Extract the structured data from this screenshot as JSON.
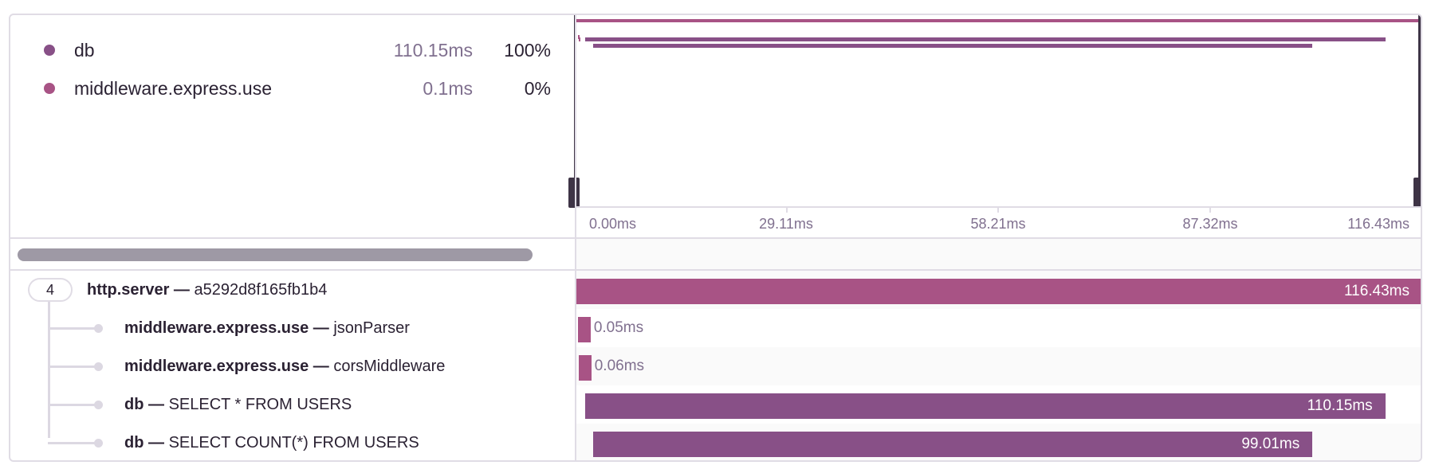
{
  "colors": {
    "http": "#a85385",
    "db": "#885087",
    "middleware": "#a85385",
    "handle": "#3e3446"
  },
  "legend": [
    {
      "name": "db",
      "duration": "110.15ms",
      "percent": "100%",
      "color": "#885087"
    },
    {
      "name": "middleware.express.use",
      "duration": "0.1ms",
      "percent": "0%",
      "color": "#a85385"
    }
  ],
  "axis": {
    "ticks": [
      "0.00ms",
      "29.11ms",
      "58.21ms",
      "87.32ms",
      "116.43ms"
    ]
  },
  "trace": {
    "child_count": "4",
    "total_ms": 116.43,
    "spans": [
      {
        "op": "http.server",
        "desc": "a5292d8f165fb1b4",
        "duration": "116.43ms",
        "start_ms": 0,
        "dur_ms": 116.43,
        "color": "#a85385"
      },
      {
        "op": "middleware.express.use",
        "desc": "jsonParser",
        "duration": "0.05ms",
        "start_ms": 0.2,
        "dur_ms": 0.05,
        "color": "#a85385"
      },
      {
        "op": "middleware.express.use",
        "desc": "corsMiddleware",
        "duration": "0.06ms",
        "start_ms": 0.3,
        "dur_ms": 0.06,
        "color": "#a85385"
      },
      {
        "op": "db",
        "desc": "SELECT * FROM USERS",
        "duration": "110.15ms",
        "start_ms": 1.2,
        "dur_ms": 110.15,
        "color": "#885087"
      },
      {
        "op": "db",
        "desc": "SELECT COUNT(*) FROM USERS",
        "duration": "99.01ms",
        "start_ms": 2.3,
        "dur_ms": 99.01,
        "color": "#885087"
      }
    ]
  },
  "separator": " — "
}
